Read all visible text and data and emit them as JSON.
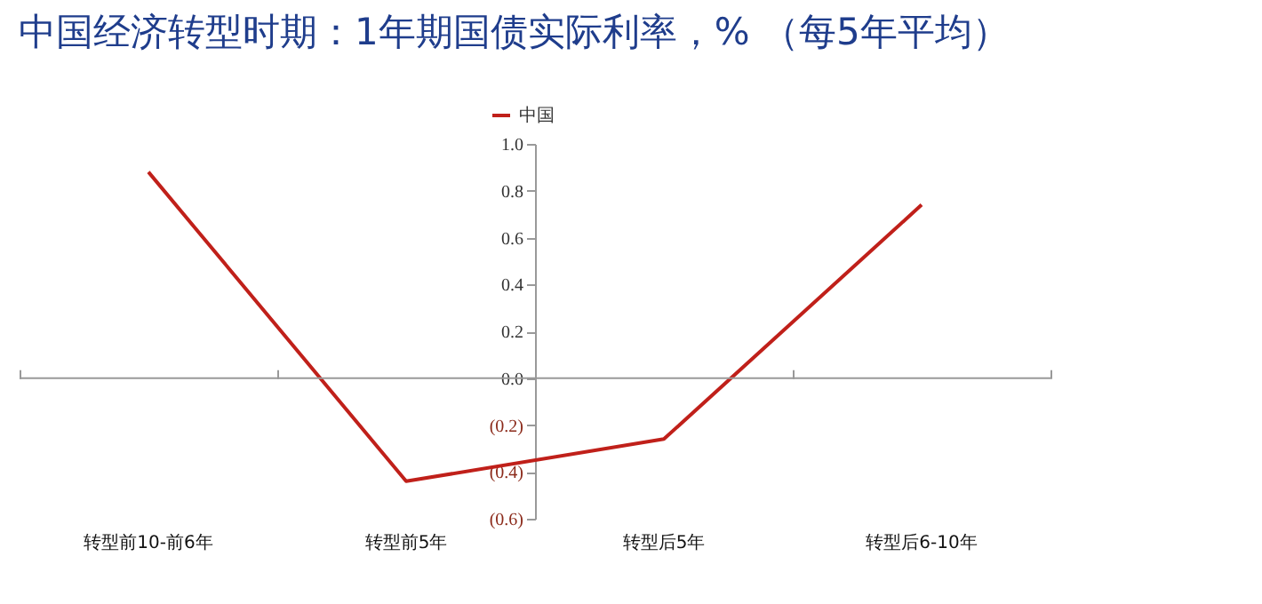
{
  "chart_data": {
    "type": "line",
    "title": "中国经济转型时期：1年期国债实际利率，% （每5年平均）",
    "categories": [
      "转型前10-前6年",
      "转型前5年",
      "转型后5年",
      "转型后6-10年"
    ],
    "series": [
      {
        "name": "中国",
        "color": "#c0201a",
        "values": [
          0.88,
          -0.44,
          -0.26,
          0.74
        ]
      }
    ],
    "ylim": [
      -0.6,
      1.0
    ],
    "yticks": [
      {
        "value": -0.6,
        "label": "(0.6)"
      },
      {
        "value": -0.4,
        "label": "(0.4)"
      },
      {
        "value": -0.2,
        "label": "(0.2)"
      },
      {
        "value": 0,
        "label": "0.0"
      },
      {
        "value": 0.2,
        "label": "0.2"
      },
      {
        "value": 0.4,
        "label": "0.4"
      },
      {
        "value": 0.6,
        "label": "0.6"
      },
      {
        "value": 0.8,
        "label": "0.8"
      },
      {
        "value": 1.0,
        "label": "1.0"
      }
    ],
    "ref_lines": [
      {
        "axis": "y",
        "value": 0,
        "color": "#999999",
        "line_style": "solid"
      }
    ],
    "legend": "top",
    "grid": false,
    "marker": "none",
    "line_style": "solid"
  }
}
